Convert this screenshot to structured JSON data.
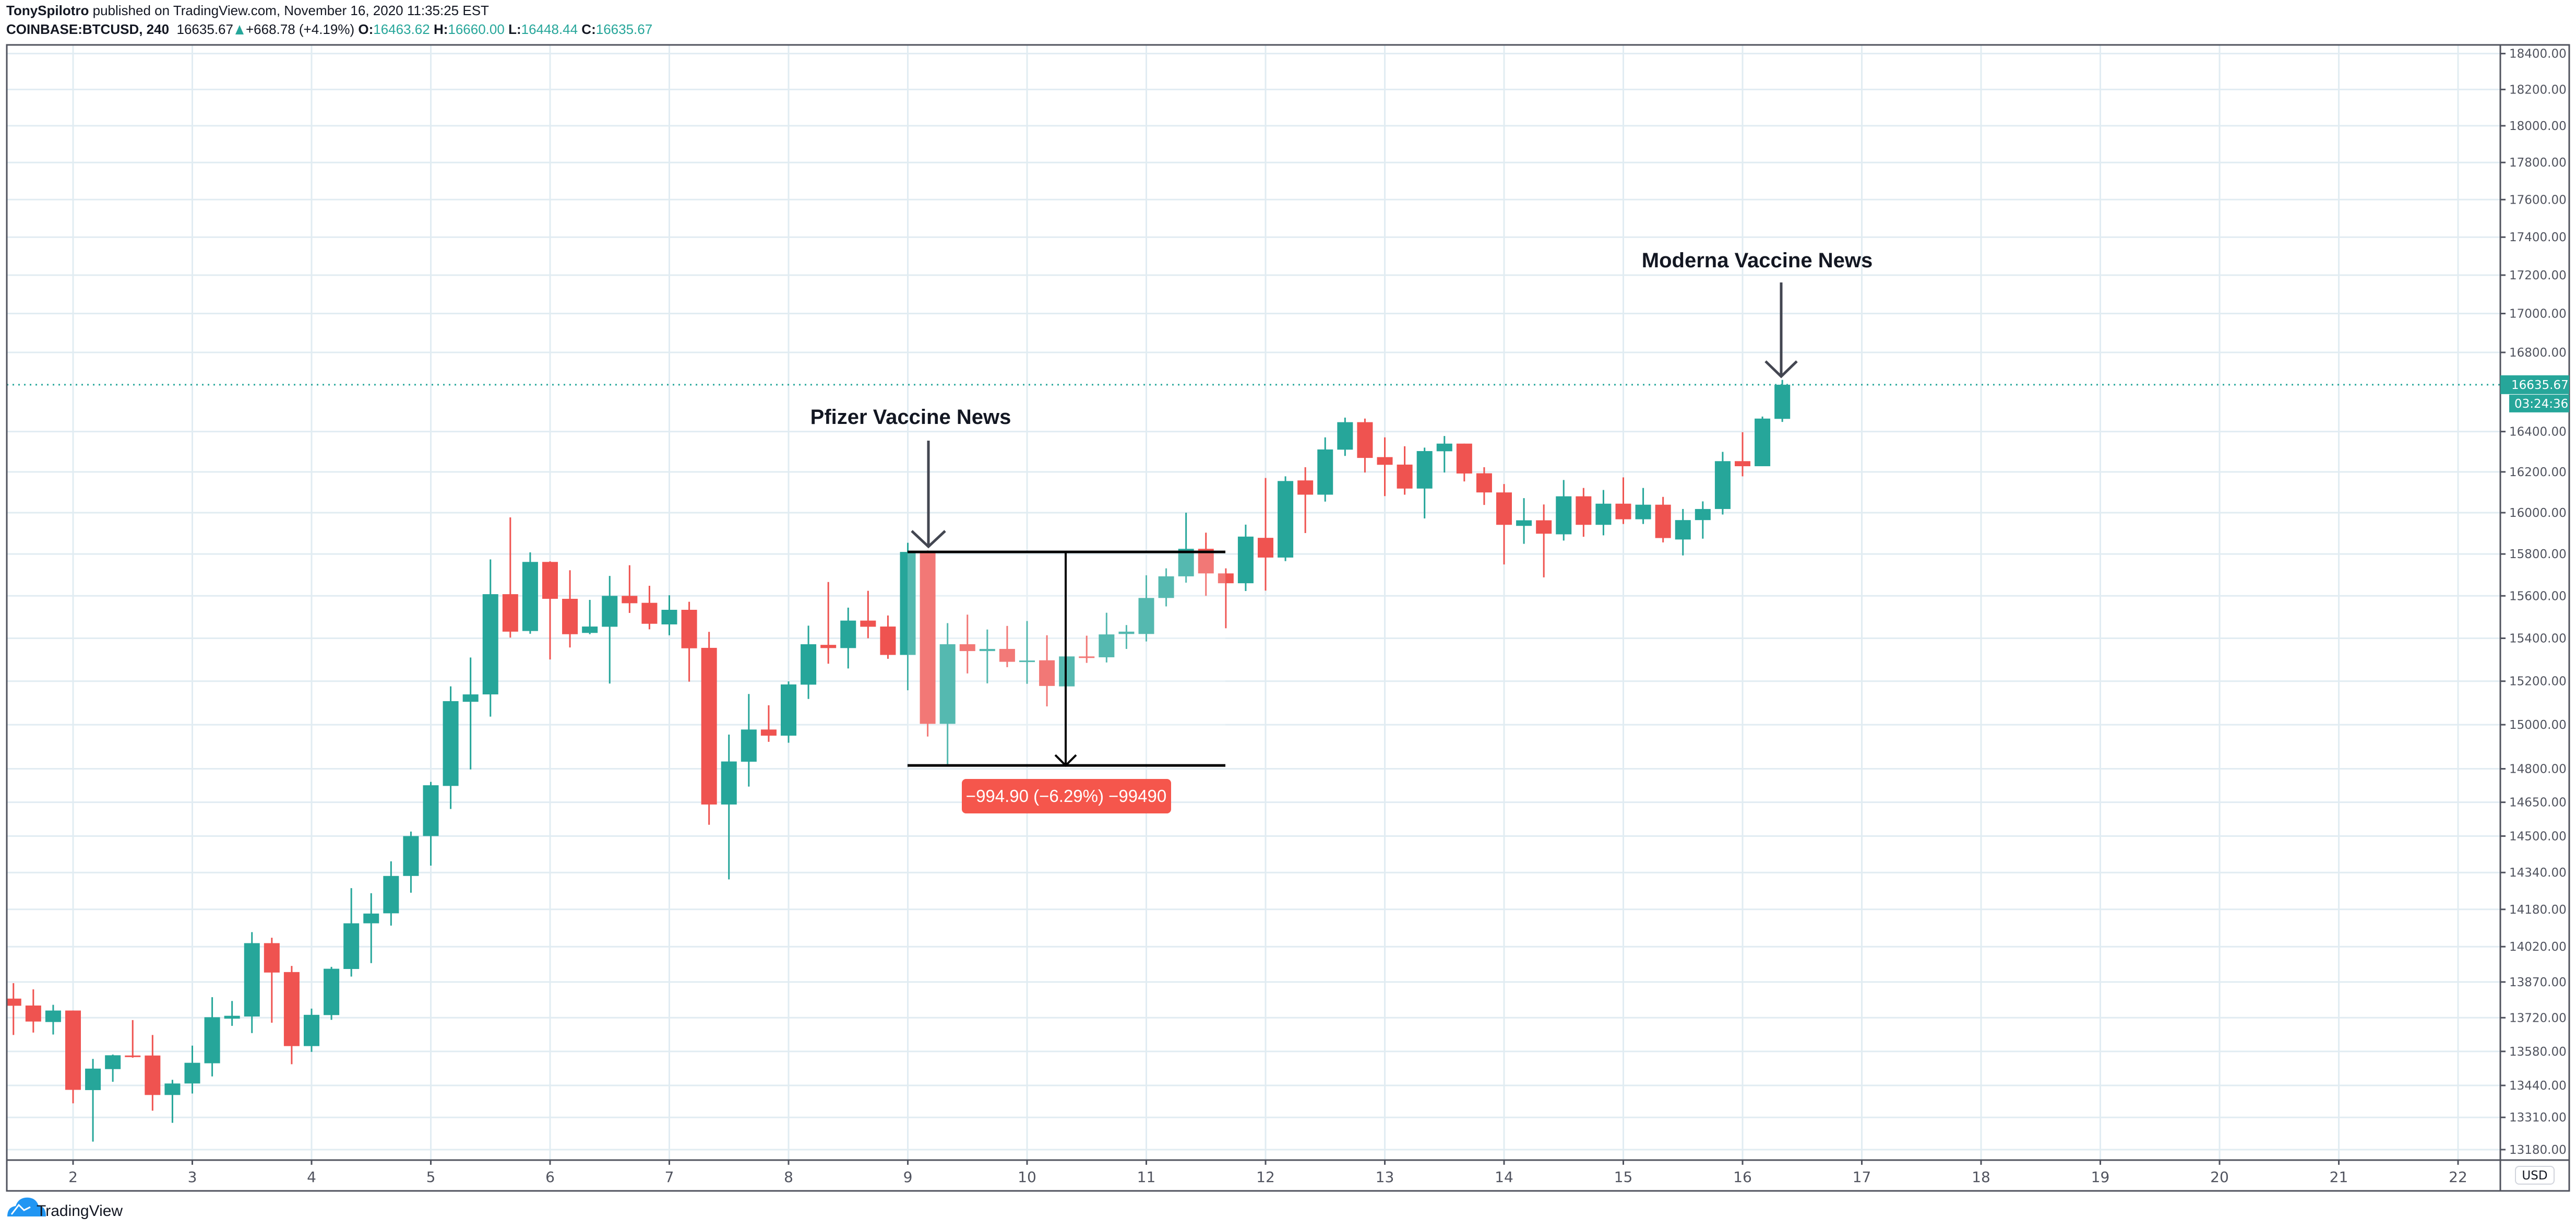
{
  "header": {
    "author": "TonySpilotro",
    "published": "published on TradingView.com, November 16, 2020 11:35:25 EST",
    "symbol": "COINBASE:BTCUSD, 240",
    "last": "16635.67",
    "change": "+668.78 (+4.19%)",
    "o_label": "O:",
    "o": "16463.62",
    "h_label": "H:",
    "h": "16660.00",
    "l_label": "L:",
    "l": "16448.44",
    "c_label": "C:",
    "c": "16635.67"
  },
  "price_axis": {
    "currency": "USD",
    "last_price_label": "16635.67",
    "countdown": "03:24:36"
  },
  "annotations": {
    "pfizer": "Pfizer Vaccine News",
    "moderna": "Moderna Vaccine News",
    "measure": "−994.90 (−6.29%) −99490"
  },
  "footer": {
    "logo": "TradingView"
  },
  "colors": {
    "up": "#26a69a",
    "down": "#ef5350",
    "grid": "#e1ecf2",
    "measure": "#f5564c"
  },
  "chart_data": {
    "type": "candlestick",
    "interval": "240",
    "y_scale": "log",
    "grid": true,
    "y_ticks": [
      18400,
      18200,
      18000,
      17800,
      17600,
      17400,
      17200,
      17000,
      16800,
      16400,
      16200,
      16000,
      15800,
      15600,
      15400,
      15200,
      15000,
      14800,
      14650,
      14500,
      14340,
      14180,
      14020,
      13870,
      13720,
      13580,
      13440,
      13310,
      13180
    ],
    "x_ticks": [
      "2",
      "3",
      "4",
      "5",
      "6",
      "7",
      "8",
      "9",
      "10",
      "11",
      "12",
      "13",
      "14",
      "15",
      "16",
      "17",
      "18",
      "19",
      "20",
      "21",
      "22"
    ],
    "measure": {
      "from": 15810,
      "to": 14815.1
    },
    "columns": [
      "time",
      "open",
      "high",
      "low",
      "close"
    ],
    "candles": [
      [
        "11-01 12",
        13800,
        13865,
        13648,
        13770
      ],
      [
        "11-01 16",
        13771,
        13839,
        13658,
        13704
      ],
      [
        "11-01 20",
        13702,
        13774,
        13650,
        13750
      ],
      [
        "11-02 00",
        13750,
        13750,
        13367,
        13422
      ],
      [
        "11-02 04",
        13421,
        13549,
        13212,
        13509
      ],
      [
        "11-02 08",
        13507,
        13567,
        13455,
        13564
      ],
      [
        "11-02 12",
        13563,
        13710,
        13554,
        13560
      ],
      [
        "11-02 16",
        13563,
        13648,
        13337,
        13401
      ],
      [
        "11-02 20",
        13401,
        13463,
        13288,
        13448
      ],
      [
        "11-03 00",
        13448,
        13604,
        13407,
        13533
      ],
      [
        "11-03 04",
        13531,
        13806,
        13477,
        13722
      ],
      [
        "11-03 08",
        13716,
        13790,
        13686,
        13728
      ],
      [
        "11-03 12",
        13725,
        14082,
        13656,
        14035
      ],
      [
        "11-03 16",
        14035,
        14058,
        13699,
        13910
      ],
      [
        "11-03 20",
        13912,
        13938,
        13527,
        13602
      ],
      [
        "11-04 00",
        13602,
        13758,
        13578,
        13732
      ],
      [
        "11-04 04",
        13731,
        13934,
        13711,
        13926
      ],
      [
        "11-04 08",
        13925,
        14272,
        13893,
        14120
      ],
      [
        "11-04 12",
        14120,
        14250,
        13950,
        14162
      ],
      [
        "11-04 16",
        14163,
        14389,
        14110,
        14325
      ],
      [
        "11-04 20",
        14325,
        14520,
        14252,
        14500
      ],
      [
        "11-05 00",
        14500,
        14741,
        14370,
        14726
      ],
      [
        "11-05 04",
        14723,
        15176,
        14620,
        15108
      ],
      [
        "11-05 08",
        15105,
        15310,
        14797,
        15139
      ],
      [
        "11-05 12",
        15139,
        15774,
        15037,
        15608
      ],
      [
        "11-05 16",
        15608,
        15977,
        15403,
        15431
      ],
      [
        "11-05 20",
        15434,
        15808,
        15421,
        15762
      ],
      [
        "11-06 00",
        15762,
        15765,
        15301,
        15586
      ],
      [
        "11-06 04",
        15586,
        15722,
        15357,
        15419
      ],
      [
        "11-06 08",
        15425,
        15581,
        15419,
        15455
      ],
      [
        "11-06 12",
        15454,
        15695,
        15189,
        15600
      ],
      [
        "11-06 16",
        15600,
        15746,
        15519,
        15565
      ],
      [
        "11-06 20",
        15567,
        15648,
        15442,
        15468
      ],
      [
        "11-07 00",
        15465,
        15603,
        15414,
        15534
      ],
      [
        "11-07 04",
        15534,
        15572,
        15198,
        15353
      ],
      [
        "11-07 08",
        15355,
        15430,
        14550,
        14640
      ],
      [
        "11-07 12",
        14640,
        14955,
        14310,
        14833
      ],
      [
        "11-07 16",
        14832,
        15141,
        14720,
        14978
      ],
      [
        "11-07 20",
        14978,
        15089,
        14922,
        14950
      ],
      [
        "11-08 00",
        14950,
        15199,
        14918,
        15185
      ],
      [
        "11-08 04",
        15184,
        15459,
        15118,
        15372
      ],
      [
        "11-08 08",
        15369,
        15666,
        15281,
        15354
      ],
      [
        "11-08 12",
        15354,
        15544,
        15259,
        15483
      ],
      [
        "11-08 16",
        15483,
        15624,
        15400,
        15454
      ],
      [
        "11-08 20",
        15455,
        15507,
        15304,
        15322
      ],
      [
        "11-09 00",
        15322,
        15854,
        15158,
        15810
      ],
      [
        "11-09 04",
        15810,
        15817,
        14946,
        15004
      ],
      [
        "11-09 08",
        15004,
        15471,
        14821,
        15372
      ],
      [
        "11-09 12",
        15372,
        15511,
        15236,
        15340
      ],
      [
        "11-09 16",
        15340,
        15441,
        15190,
        15350
      ],
      [
        "11-09 20",
        15350,
        15458,
        15265,
        15290
      ],
      [
        "11-10 00",
        15290,
        15481,
        15188,
        15296
      ],
      [
        "11-10 04",
        15297,
        15414,
        15084,
        15178
      ],
      [
        "11-10 08",
        15176,
        15315,
        15176,
        15315
      ],
      [
        "11-10 12",
        15315,
        15412,
        15285,
        15310
      ],
      [
        "11-10 16",
        15311,
        15520,
        15287,
        15418
      ],
      [
        "11-10 20",
        15420,
        15462,
        15350,
        15431
      ],
      [
        "11-11 00",
        15420,
        15698,
        15385,
        15590
      ],
      [
        "11-11 04",
        15590,
        15731,
        15550,
        15693
      ],
      [
        "11-11 08",
        15693,
        16000,
        15663,
        15825
      ],
      [
        "11-11 12",
        15825,
        15903,
        15600,
        15707
      ],
      [
        "11-11 16",
        15707,
        15731,
        15447,
        15660
      ],
      [
        "11-11 20",
        15660,
        15942,
        15623,
        15884
      ],
      [
        "11-12 00",
        15878,
        16170,
        15625,
        15783
      ],
      [
        "11-12 04",
        15783,
        16178,
        15766,
        16155
      ],
      [
        "11-12 08",
        16158,
        16223,
        15901,
        16088
      ],
      [
        "11-12 12",
        16088,
        16371,
        16054,
        16311
      ],
      [
        "11-12 16",
        16310,
        16470,
        16279,
        16447
      ],
      [
        "11-12 20",
        16447,
        16465,
        16197,
        16269
      ],
      [
        "11-13 00",
        16273,
        16371,
        16081,
        16235
      ],
      [
        "11-13 04",
        16236,
        16327,
        16088,
        16118
      ],
      [
        "11-13 08",
        16118,
        16320,
        15972,
        16303
      ],
      [
        "11-13 12",
        16302,
        16378,
        16197,
        16340
      ],
      [
        "11-13 16",
        16340,
        16340,
        16153,
        16192
      ],
      [
        "11-13 20",
        16193,
        16223,
        16038,
        16099
      ],
      [
        "11-14 00",
        16099,
        16140,
        15750,
        15941
      ],
      [
        "11-14 04",
        15936,
        16071,
        15849,
        15963
      ],
      [
        "11-14 08",
        15963,
        16040,
        15688,
        15898
      ],
      [
        "11-14 12",
        15895,
        16160,
        15865,
        16080
      ],
      [
        "11-14 16",
        16080,
        16121,
        15883,
        15941
      ],
      [
        "11-14 20",
        15941,
        16111,
        15890,
        16044
      ],
      [
        "11-15 00",
        16044,
        16173,
        15945,
        15968
      ],
      [
        "11-15 04",
        15968,
        16121,
        15945,
        16039
      ],
      [
        "11-15 08",
        16039,
        16077,
        15856,
        15877
      ],
      [
        "11-15 12",
        15870,
        16018,
        15793,
        15964
      ],
      [
        "11-15 16",
        15964,
        16055,
        15874,
        16018
      ],
      [
        "11-15 20",
        16018,
        16299,
        15991,
        16253
      ],
      [
        "11-16 00",
        16253,
        16397,
        16178,
        16228
      ],
      [
        "11-16 04",
        16228,
        16475,
        16228,
        16465
      ],
      [
        "11-16 08",
        16463.62,
        16660,
        16448.44,
        16635.67
      ]
    ]
  }
}
